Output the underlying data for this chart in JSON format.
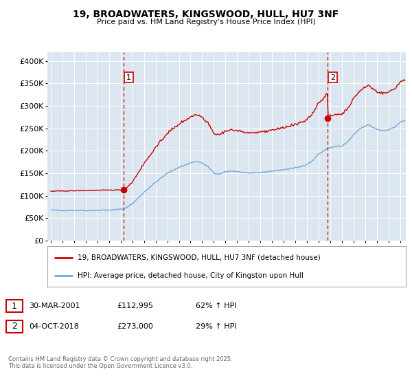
{
  "title_line1": "19, BROADWATERS, KINGSWOOD, HULL, HU7 3NF",
  "title_line2": "Price paid vs. HM Land Registry's House Price Index (HPI)",
  "y_ticks": [
    0,
    50000,
    100000,
    150000,
    200000,
    250000,
    300000,
    350000,
    400000
  ],
  "y_tick_labels": [
    "£0",
    "£50K",
    "£100K",
    "£150K",
    "£200K",
    "£250K",
    "£300K",
    "£350K",
    "£400K"
  ],
  "hpi_color": "#6fa8dc",
  "price_color": "#cc0000",
  "marker_color": "#cc0000",
  "dashed_line_color": "#cc0000",
  "annotation1_date": "30-MAR-2001",
  "annotation1_price": "£112,995",
  "annotation1_hpi": "62% ↑ HPI",
  "annotation2_date": "04-OCT-2018",
  "annotation2_price": "£273,000",
  "annotation2_hpi": "29% ↑ HPI",
  "legend_label1": "19, BROADWATERS, KINGSWOOD, HULL, HU7 3NF (detached house)",
  "legend_label2": "HPI: Average price, detached house, City of Kingston upon Hull",
  "footnote": "Contains HM Land Registry data © Crown copyright and database right 2025.\nThis data is licensed under the Open Government Licence v3.0.",
  "plot_bg_color": "#dce6f1",
  "fig_bg_color": "#ffffff",
  "marker1_x_year": 2001.25,
  "marker1_y": 112995,
  "marker2_x_year": 2018.75,
  "marker2_y": 273000,
  "vline1_x_year": 2001.25,
  "vline2_x_year": 2018.75,
  "ylim": [
    0,
    420000
  ],
  "xlim_start": 1994.7,
  "xlim_end": 2025.5
}
